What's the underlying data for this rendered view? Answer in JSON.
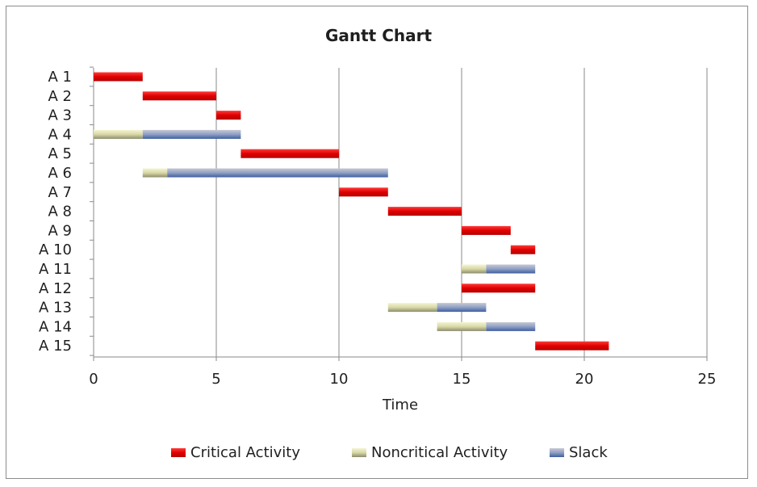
{
  "chart_data": {
    "type": "bar",
    "orientation": "horizontal",
    "stacked": true,
    "title": "Gantt Chart",
    "xlabel": "Time",
    "ylabel": "",
    "xlim": [
      0,
      25
    ],
    "xticks": [
      0,
      5,
      10,
      15,
      20,
      25
    ],
    "grid": "vertical",
    "legend_position": "bottom",
    "categories": [
      "A  1",
      "A  2",
      "A  3",
      "A  4",
      "A  5",
      "A  6",
      "A  7",
      "A  8",
      "A  9",
      "A  10",
      "A  11",
      "A  12",
      "A  13",
      "A  14",
      "A  15"
    ],
    "start": [
      0,
      2,
      5,
      0,
      6,
      2,
      10,
      12,
      15,
      17,
      15,
      15,
      12,
      14,
      18
    ],
    "series": [
      {
        "name": "Critical Activity",
        "color": "#e00000",
        "values": [
          2,
          3,
          1,
          0,
          4,
          0,
          2,
          3,
          2,
          1,
          0,
          3,
          0,
          0,
          3
        ]
      },
      {
        "name": "Noncritical Activity",
        "color": "#d9d9a8",
        "values": [
          0,
          0,
          0,
          2,
          0,
          1,
          0,
          0,
          0,
          0,
          1,
          0,
          2,
          2,
          0
        ]
      },
      {
        "name": "Slack",
        "color": "#4a6aa8",
        "values": [
          0,
          0,
          0,
          4,
          0,
          9,
          0,
          0,
          0,
          0,
          2,
          0,
          2,
          2,
          0
        ]
      }
    ]
  }
}
